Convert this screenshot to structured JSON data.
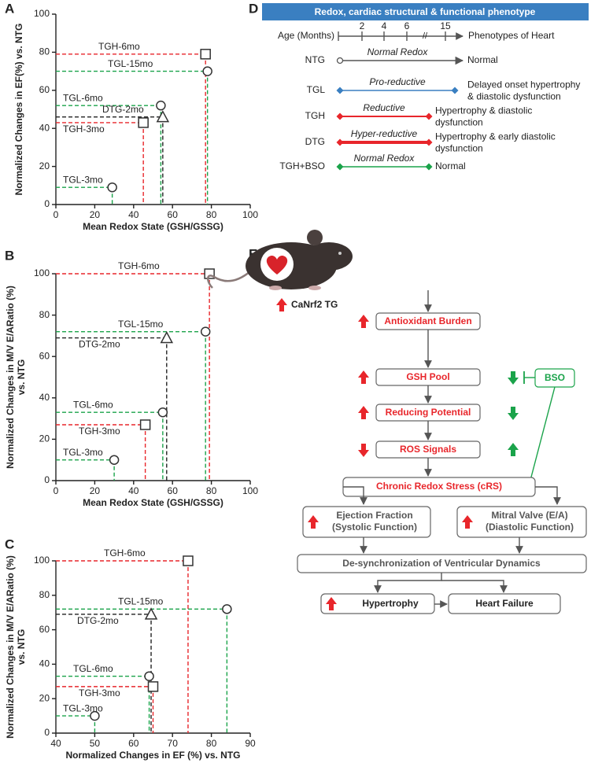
{
  "chart_data": [
    {
      "type": "scatter",
      "panel": "A",
      "xlabel": "Mean Redox State (GSH/GSSG)",
      "ylabel": "Normalized Changes in EF(%) vs. NTG",
      "xlim": [
        0,
        100
      ],
      "xticks": [
        0,
        20,
        40,
        60,
        80,
        100
      ],
      "ylim": [
        0,
        100
      ],
      "yticks": [
        0,
        20,
        40,
        60,
        80,
        100
      ],
      "series": [
        {
          "name": "TGH-6mo",
          "color": "#e8262b",
          "marker": "square",
          "x": [
            77
          ],
          "values": [
            79
          ]
        },
        {
          "name": "TGL-15mo",
          "color": "#1aa34a",
          "marker": "circle",
          "x": [
            78
          ],
          "values": [
            70
          ]
        },
        {
          "name": "TGL-6mo",
          "color": "#1aa34a",
          "marker": "circle",
          "x": [
            54
          ],
          "values": [
            52
          ]
        },
        {
          "name": "DTG-2mo",
          "color": "#222222",
          "marker": "triangle",
          "x": [
            55
          ],
          "values": [
            46
          ]
        },
        {
          "name": "TGH-3mo",
          "color": "#e8262b",
          "marker": "square",
          "x": [
            45
          ],
          "values": [
            43
          ]
        },
        {
          "name": "TGL-3mo",
          "color": "#1aa34a",
          "marker": "circle",
          "x": [
            29
          ],
          "values": [
            9
          ]
        }
      ]
    },
    {
      "type": "scatter",
      "panel": "B",
      "xlabel": "Mean Redox State (GSH/GSSG)",
      "ylabel": [
        "Normalized Changes in M/V E/ARatio (%)",
        "vs. NTG"
      ],
      "xlim": [
        0,
        100
      ],
      "xticks": [
        0,
        20,
        40,
        60,
        80,
        100
      ],
      "ylim": [
        0,
        100
      ],
      "yticks": [
        0,
        20,
        40,
        60,
        80,
        100
      ],
      "series": [
        {
          "name": "TGH-6mo",
          "color": "#e8262b",
          "marker": "square",
          "x": [
            79
          ],
          "values": [
            100
          ]
        },
        {
          "name": "TGL-15mo",
          "color": "#1aa34a",
          "marker": "circle",
          "x": [
            77
          ],
          "values": [
            72
          ]
        },
        {
          "name": "DTG-2mo",
          "color": "#222222",
          "marker": "triangle",
          "x": [
            57
          ],
          "values": [
            69
          ]
        },
        {
          "name": "TGL-6mo",
          "color": "#1aa34a",
          "marker": "circle",
          "x": [
            55
          ],
          "values": [
            33
          ]
        },
        {
          "name": "TGH-3mo",
          "color": "#e8262b",
          "marker": "square",
          "x": [
            46
          ],
          "values": [
            27
          ]
        },
        {
          "name": "TGL-3mo",
          "color": "#1aa34a",
          "marker": "circle",
          "x": [
            30
          ],
          "values": [
            10
          ]
        }
      ]
    },
    {
      "type": "scatter",
      "panel": "C",
      "xlabel": "Normalized Changes in EF (%) vs. NTG",
      "ylabel": [
        "Normalized Changes in M/V E/ARatio (%)",
        "vs. NTG"
      ],
      "xlim": [
        40,
        90
      ],
      "xticks": [
        40,
        50,
        60,
        70,
        80,
        90
      ],
      "ylim": [
        0,
        100
      ],
      "yticks": [
        0,
        20,
        40,
        60,
        80,
        100
      ],
      "series": [
        {
          "name": "TGH-6mo",
          "color": "#e8262b",
          "marker": "square",
          "x": [
            74
          ],
          "values": [
            100
          ]
        },
        {
          "name": "TGL-15mo",
          "color": "#1aa34a",
          "marker": "circle",
          "x": [
            84
          ],
          "values": [
            72
          ]
        },
        {
          "name": "DTG-2mo",
          "color": "#222222",
          "marker": "triangle",
          "x": [
            64.5
          ],
          "values": [
            69
          ]
        },
        {
          "name": "TGL-6mo",
          "color": "#1aa34a",
          "marker": "circle",
          "x": [
            64
          ],
          "values": [
            33
          ]
        },
        {
          "name": "TGH-3mo",
          "color": "#e8262b",
          "marker": "square",
          "x": [
            65
          ],
          "values": [
            27
          ]
        },
        {
          "name": "TGL-3mo",
          "color": "#1aa34a",
          "marker": "circle",
          "x": [
            50
          ],
          "values": [
            10
          ]
        }
      ]
    }
  ],
  "phenotype": {
    "panel": "D",
    "title": "Redox, cardiac structural & functional phenotype",
    "age_label": "Age (Months)",
    "ages": [
      2,
      4,
      6,
      15
    ],
    "outcome_label": "Phenotypes of Heart",
    "rows": [
      {
        "group": "NTG",
        "redox": "Normal Redox",
        "phenotype": [
          "Normal"
        ]
      },
      {
        "group": "TGL",
        "redox": "Pro-reductive",
        "phenotype": [
          "Delayed onset hypertrophy",
          "& diastolic dysfunction"
        ]
      },
      {
        "group": "TGH",
        "redox": "Reductive",
        "phenotype": [
          "Hypertrophy & diastolic",
          "dysfunction"
        ]
      },
      {
        "group": "DTG",
        "redox": "Hyper-reductive",
        "phenotype": [
          "Hypertrophy & early diastolic",
          "dysfunction"
        ]
      },
      {
        "group": "TGH+BSO",
        "redox": "Normal Redox",
        "phenotype": [
          "Normal"
        ]
      }
    ]
  },
  "pathway": {
    "panel": "E",
    "transgene": "CaNrf2 TG",
    "steps": [
      "Antioxidant Burden",
      "GSH Pool",
      "Reducing Potential",
      "ROS Signals"
    ],
    "inhibitor": "BSO",
    "stress": "Chronic Redox Stress (cRS)",
    "ejection": [
      "Ejection Fraction",
      "(Systolic Function)"
    ],
    "mitral": [
      "Mitral Valve (E/A)",
      "(Diastolic Function)"
    ],
    "desync": "De-synchronization of Ventricular Dynamics",
    "hypertrophy": "Hypertrophy",
    "failure": "Heart Failure"
  }
}
